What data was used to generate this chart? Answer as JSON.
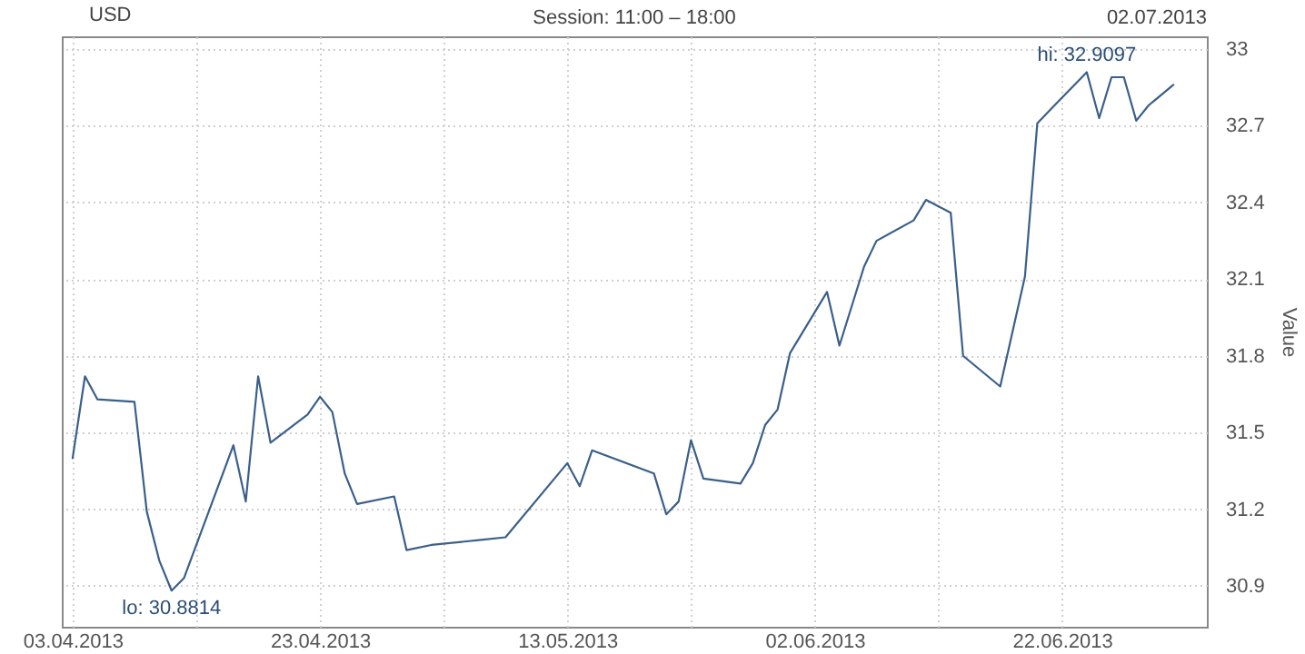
{
  "chart_data": {
    "type": "line",
    "title": "Session: 11:00 – 18:00",
    "ylabel": "Value",
    "legend": "top left",
    "grid": true,
    "x": [
      "2013-04-03",
      "2013-04-04",
      "2013-04-05",
      "2013-04-08",
      "2013-04-09",
      "2013-04-10",
      "2013-04-11",
      "2013-04-12",
      "2013-04-16",
      "2013-04-17",
      "2013-04-18",
      "2013-04-19",
      "2013-04-22",
      "2013-04-23",
      "2013-04-24",
      "2013-04-25",
      "2013-04-26",
      "2013-04-29",
      "2013-04-30",
      "2013-05-02",
      "2013-05-06",
      "2013-05-08",
      "2013-05-13",
      "2013-05-14",
      "2013-05-15",
      "2013-05-20",
      "2013-05-21",
      "2013-05-22",
      "2013-05-23",
      "2013-05-24",
      "2013-05-27",
      "2013-05-28",
      "2013-05-29",
      "2013-05-30",
      "2013-05-31",
      "2013-06-03",
      "2013-06-04",
      "2013-06-06",
      "2013-06-07",
      "2013-06-10",
      "2013-06-11",
      "2013-06-13",
      "2013-06-14",
      "2013-06-17",
      "2013-06-19",
      "2013-06-20",
      "2013-06-21",
      "2013-06-24",
      "2013-06-25",
      "2013-06-26",
      "2013-06-27",
      "2013-06-28",
      "2013-06-29",
      "2013-07-01"
    ],
    "series": [
      {
        "name": "USD",
        "color": "#3a5f8a",
        "values": [
          31.4,
          31.72,
          31.63,
          31.62,
          31.19,
          31.0,
          30.8814,
          30.93,
          31.45,
          31.23,
          31.72,
          31.46,
          31.57,
          31.64,
          31.58,
          31.34,
          31.22,
          31.25,
          31.04,
          31.06,
          31.08,
          31.09,
          31.38,
          31.29,
          31.43,
          31.34,
          31.18,
          31.23,
          31.47,
          31.32,
          31.3,
          31.38,
          31.53,
          31.59,
          31.81,
          32.05,
          31.84,
          32.15,
          32.25,
          32.33,
          32.41,
          32.36,
          31.8,
          31.68,
          32.11,
          32.71,
          32.76,
          32.9097,
          32.73,
          32.89,
          32.89,
          32.72,
          32.78,
          32.86
        ]
      }
    ],
    "xlim": [
      "2013-04-02T03:00",
      "2013-07-03T17:00"
    ],
    "xticks": [
      {
        "value": "2013-04-03",
        "label": "03.04.2013"
      },
      {
        "value": "2013-04-13",
        "label": null
      },
      {
        "value": "2013-04-23",
        "label": "23.04.2013"
      },
      {
        "value": "2013-05-03",
        "label": null
      },
      {
        "value": "2013-05-13",
        "label": "13.05.2013"
      },
      {
        "value": "2013-05-23",
        "label": null
      },
      {
        "value": "2013-06-02",
        "label": "02.06.2013"
      },
      {
        "value": "2013-06-12",
        "label": null
      },
      {
        "value": "2013-06-22",
        "label": "22.06.2013"
      }
    ],
    "ylim": [
      30.74,
      33.05
    ],
    "yticks": [
      30.9,
      31.2,
      31.5,
      31.8,
      32.1,
      32.4,
      32.7,
      33
    ],
    "annotations": [
      "02.07.2013",
      {
        "text": "lo: 30.8814",
        "x": "2013-04-11",
        "y": 30.8814
      },
      {
        "text": "hi: 32.9097",
        "x": "2013-06-24",
        "y": 32.9097
      }
    ]
  }
}
